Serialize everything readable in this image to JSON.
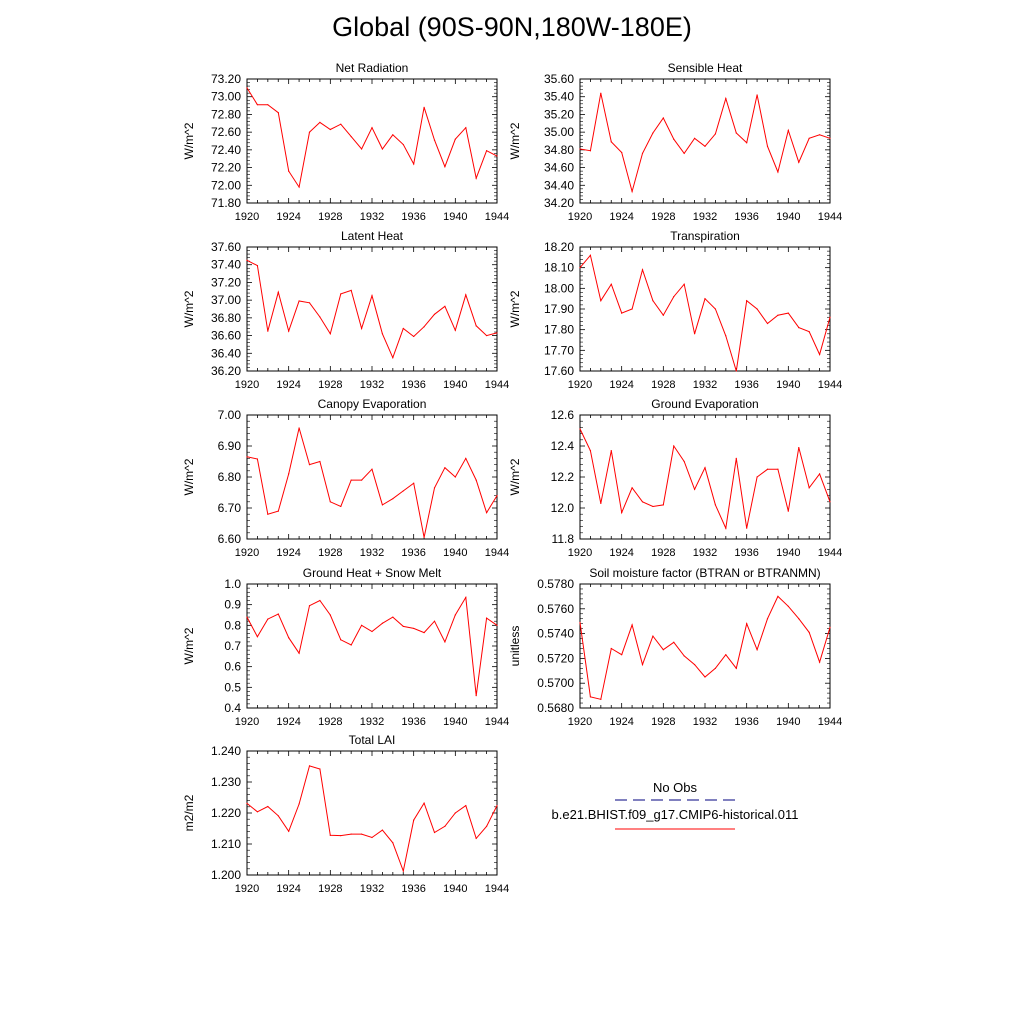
{
  "title": "Global (90S-90N,180W-180E)",
  "colors": {
    "series": "#ff0000",
    "obs": "#00007f",
    "frame": "#000000"
  },
  "legend": {
    "entries": [
      "No Obs",
      "b.e21.BHIST.f09_g17.CMIP6-historical.011"
    ]
  },
  "chart_data": [
    {
      "type": "line",
      "title": "Net Radiation",
      "ylabel": "W/m^2",
      "xlim": [
        1920,
        1944
      ],
      "ylim": [
        71.8,
        73.2
      ],
      "xticks": [
        "1920",
        "1924",
        "1928",
        "1932",
        "1936",
        "1940",
        "1944"
      ],
      "yticks": [
        "71.80",
        "72.00",
        "72.20",
        "72.40",
        "72.60",
        "72.80",
        "73.00",
        "73.20"
      ],
      "x": [
        1920,
        1921,
        1922,
        1923,
        1924,
        1925,
        1926,
        1927,
        1928,
        1929,
        1930,
        1931,
        1932,
        1933,
        1934,
        1935,
        1936,
        1937,
        1938,
        1939,
        1940,
        1941,
        1942,
        1943,
        1944
      ],
      "values": [
        73.1,
        72.91,
        72.91,
        72.82,
        72.16,
        71.98,
        72.6,
        72.71,
        72.63,
        72.69,
        72.55,
        72.41,
        72.65,
        72.41,
        72.57,
        72.46,
        72.24,
        72.88,
        72.51,
        72.21,
        72.52,
        72.65,
        72.08,
        72.39,
        72.33
      ]
    },
    {
      "type": "line",
      "title": "Sensible Heat",
      "ylabel": "W/m^2",
      "xlim": [
        1920,
        1944
      ],
      "ylim": [
        34.2,
        35.6
      ],
      "xticks": [
        "1920",
        "1924",
        "1928",
        "1932",
        "1936",
        "1940",
        "1944"
      ],
      "yticks": [
        "34.20",
        "34.40",
        "34.60",
        "34.80",
        "35.00",
        "35.20",
        "35.40",
        "35.60"
      ],
      "x": [
        1920,
        1921,
        1922,
        1923,
        1924,
        1925,
        1926,
        1927,
        1928,
        1929,
        1930,
        1931,
        1932,
        1933,
        1934,
        1935,
        1936,
        1937,
        1938,
        1939,
        1940,
        1941,
        1942,
        1943,
        1944
      ],
      "values": [
        34.81,
        34.79,
        35.44,
        34.89,
        34.77,
        34.33,
        34.76,
        34.99,
        35.16,
        34.92,
        34.76,
        34.93,
        34.84,
        34.98,
        35.38,
        34.99,
        34.88,
        35.42,
        34.84,
        34.55,
        35.02,
        34.66,
        34.93,
        34.97,
        34.93
      ]
    },
    {
      "type": "line",
      "title": "Latent Heat",
      "ylabel": "W/m^2",
      "xlim": [
        1920,
        1944
      ],
      "ylim": [
        36.2,
        37.6
      ],
      "xticks": [
        "1920",
        "1924",
        "1928",
        "1932",
        "1936",
        "1940",
        "1944"
      ],
      "yticks": [
        "36.20",
        "36.40",
        "36.60",
        "36.80",
        "37.00",
        "37.20",
        "37.40",
        "37.60"
      ],
      "x": [
        1920,
        1921,
        1922,
        1923,
        1924,
        1925,
        1926,
        1927,
        1928,
        1929,
        1930,
        1931,
        1932,
        1933,
        1934,
        1935,
        1936,
        1937,
        1938,
        1939,
        1940,
        1941,
        1942,
        1943,
        1944
      ],
      "values": [
        37.45,
        37.39,
        36.65,
        37.09,
        36.65,
        36.99,
        36.97,
        36.81,
        36.62,
        37.07,
        37.11,
        36.68,
        37.05,
        36.62,
        36.35,
        36.68,
        36.59,
        36.7,
        36.84,
        36.93,
        36.66,
        37.06,
        36.71,
        36.6,
        36.63
      ]
    },
    {
      "type": "line",
      "title": "Transpiration",
      "ylabel": "W/m^2",
      "xlim": [
        1920,
        1944
      ],
      "ylim": [
        17.6,
        18.2
      ],
      "xticks": [
        "1920",
        "1924",
        "1928",
        "1932",
        "1936",
        "1940",
        "1944"
      ],
      "yticks": [
        "17.60",
        "17.70",
        "17.80",
        "17.90",
        "18.00",
        "18.10",
        "18.20"
      ],
      "x": [
        1920,
        1921,
        1922,
        1923,
        1924,
        1925,
        1926,
        1927,
        1928,
        1929,
        1930,
        1931,
        1932,
        1933,
        1934,
        1935,
        1936,
        1937,
        1938,
        1939,
        1940,
        1941,
        1942,
        1943,
        1944
      ],
      "values": [
        18.1,
        18.16,
        17.94,
        18.02,
        17.88,
        17.9,
        18.09,
        17.94,
        17.87,
        17.96,
        18.02,
        17.78,
        17.95,
        17.9,
        17.77,
        17.6,
        17.94,
        17.9,
        17.83,
        17.87,
        17.88,
        17.81,
        17.79,
        17.68,
        17.86
      ]
    },
    {
      "type": "line",
      "title": "Canopy Evaporation",
      "ylabel": "W/m^2",
      "xlim": [
        1920,
        1944
      ],
      "ylim": [
        6.6,
        7.0
      ],
      "xticks": [
        "1920",
        "1924",
        "1928",
        "1932",
        "1936",
        "1940",
        "1944"
      ],
      "yticks": [
        "6.60",
        "6.70",
        "6.80",
        "6.90",
        "7.00"
      ],
      "x": [
        1920,
        1921,
        1922,
        1923,
        1924,
        1925,
        1926,
        1927,
        1928,
        1929,
        1930,
        1931,
        1932,
        1933,
        1934,
        1935,
        1936,
        1937,
        1938,
        1939,
        1940,
        1941,
        1942,
        1943,
        1944
      ],
      "values": [
        6.865,
        6.858,
        6.68,
        6.69,
        6.81,
        6.958,
        6.84,
        6.85,
        6.72,
        6.705,
        6.79,
        6.79,
        6.825,
        6.71,
        6.73,
        6.755,
        6.78,
        6.605,
        6.765,
        6.83,
        6.8,
        6.86,
        6.79,
        6.685,
        6.74
      ]
    },
    {
      "type": "line",
      "title": "Ground Evaporation",
      "ylabel": "W/m^2",
      "xlim": [
        1920,
        1944
      ],
      "ylim": [
        11.8,
        12.6
      ],
      "xticks": [
        "1920",
        "1924",
        "1928",
        "1932",
        "1936",
        "1940",
        "1944"
      ],
      "yticks": [
        "11.8",
        "12.0",
        "12.2",
        "12.4",
        "12.6"
      ],
      "x": [
        1920,
        1921,
        1922,
        1923,
        1924,
        1925,
        1926,
        1927,
        1928,
        1929,
        1930,
        1931,
        1932,
        1933,
        1934,
        1935,
        1936,
        1937,
        1938,
        1939,
        1940,
        1941,
        1942,
        1943,
        1944
      ],
      "values": [
        12.51,
        12.37,
        12.03,
        12.37,
        11.97,
        12.13,
        12.04,
        12.01,
        12.02,
        12.4,
        12.3,
        12.12,
        12.26,
        12.02,
        11.87,
        12.32,
        11.87,
        12.2,
        12.25,
        12.25,
        11.98,
        12.39,
        12.13,
        12.22,
        12.04
      ]
    },
    {
      "type": "line",
      "title": "Ground Heat + Snow Melt",
      "ylabel": "W/m^2",
      "xlim": [
        1920,
        1944
      ],
      "ylim": [
        0.4,
        1.0
      ],
      "xticks": [
        "1920",
        "1924",
        "1928",
        "1932",
        "1936",
        "1940",
        "1944"
      ],
      "yticks": [
        "0.4",
        "0.5",
        "0.6",
        "0.7",
        "0.8",
        "0.9",
        "1.0"
      ],
      "x": [
        1920,
        1921,
        1922,
        1923,
        1924,
        1925,
        1926,
        1927,
        1928,
        1929,
        1930,
        1931,
        1932,
        1933,
        1934,
        1935,
        1936,
        1937,
        1938,
        1939,
        1940,
        1941,
        1942,
        1943,
        1944
      ],
      "values": [
        0.84,
        0.745,
        0.83,
        0.855,
        0.74,
        0.665,
        0.895,
        0.92,
        0.85,
        0.73,
        0.705,
        0.8,
        0.77,
        0.81,
        0.84,
        0.795,
        0.785,
        0.765,
        0.82,
        0.72,
        0.85,
        0.935,
        0.46,
        0.835,
        0.8
      ]
    },
    {
      "type": "line",
      "title": "Soil moisture factor (BTRAN or BTRANMN)",
      "ylabel": "unitless",
      "xlim": [
        1920,
        1944
      ],
      "ylim": [
        0.568,
        0.578
      ],
      "xticks": [
        "1920",
        "1924",
        "1928",
        "1932",
        "1936",
        "1940",
        "1944"
      ],
      "yticks": [
        "0.5680",
        "0.5700",
        "0.5720",
        "0.5740",
        "0.5760",
        "0.5780"
      ],
      "x": [
        1920,
        1921,
        1922,
        1923,
        1924,
        1925,
        1926,
        1927,
        1928,
        1929,
        1930,
        1931,
        1932,
        1933,
        1934,
        1935,
        1936,
        1937,
        1938,
        1939,
        1940,
        1941,
        1942,
        1943,
        1944
      ],
      "values": [
        0.5749,
        0.5689,
        0.5687,
        0.5728,
        0.5723,
        0.5747,
        0.5715,
        0.5738,
        0.5727,
        0.5733,
        0.5722,
        0.5715,
        0.5705,
        0.5712,
        0.5723,
        0.5712,
        0.5748,
        0.5727,
        0.5752,
        0.577,
        0.5762,
        0.5752,
        0.5741,
        0.5717,
        0.5745
      ]
    },
    {
      "type": "line",
      "title": "Total LAI",
      "ylabel": "m2/m2",
      "xlim": [
        1920,
        1944
      ],
      "ylim": [
        1.2,
        1.24
      ],
      "xticks": [
        "1920",
        "1924",
        "1928",
        "1932",
        "1936",
        "1940",
        "1944"
      ],
      "yticks": [
        "1.200",
        "1.210",
        "1.220",
        "1.230",
        "1.240"
      ],
      "x": [
        1920,
        1921,
        1922,
        1923,
        1924,
        1925,
        1926,
        1927,
        1928,
        1929,
        1930,
        1931,
        1932,
        1933,
        1934,
        1935,
        1936,
        1937,
        1938,
        1939,
        1940,
        1941,
        1942,
        1943,
        1944
      ],
      "values": [
        1.2231,
        1.2204,
        1.2221,
        1.2191,
        1.2141,
        1.2229,
        1.2352,
        1.2342,
        1.2128,
        1.2127,
        1.2132,
        1.2132,
        1.2121,
        1.2145,
        1.2104,
        1.2013,
        1.2177,
        1.2232,
        1.2137,
        1.2157,
        1.22,
        1.2224,
        1.2118,
        1.2157,
        1.2224
      ]
    }
  ]
}
